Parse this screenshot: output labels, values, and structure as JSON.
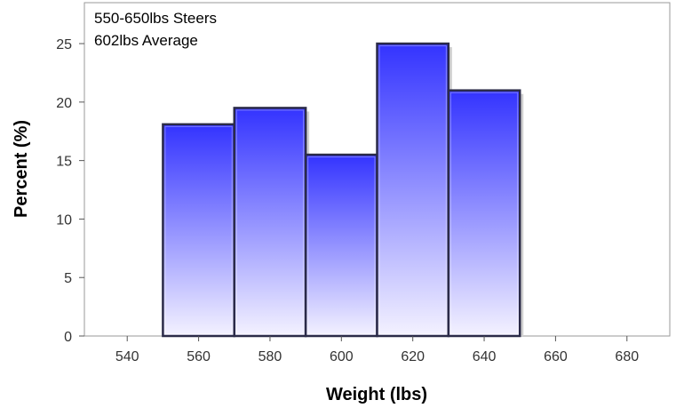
{
  "chart_data": {
    "type": "bar",
    "subtype": "histogram",
    "annotations": [
      "550-650lbs Steers",
      "602lbs Average"
    ],
    "xlabel": "Weight (lbs)",
    "ylabel": "Percent (%)",
    "xlim": [
      528,
      692
    ],
    "ylim": [
      0,
      28.5
    ],
    "xticks": [
      "540",
      "560",
      "580",
      "600",
      "620",
      "640",
      "660",
      "680"
    ],
    "yticks": [
      "0",
      "5",
      "10",
      "15",
      "20",
      "25"
    ],
    "bins": [
      {
        "x0": 550,
        "x1": 570,
        "value": 18.1
      },
      {
        "x0": 570,
        "x1": 590,
        "value": 19.5
      },
      {
        "x0": 590,
        "x1": 610,
        "value": 15.5
      },
      {
        "x0": 610,
        "x1": 630,
        "value": 25.0
      },
      {
        "x0": 630,
        "x1": 650,
        "value": 21.0
      }
    ],
    "bar_color_top": "#3333ff",
    "bar_color_bottom": "#f4f2ff",
    "bar_outline": "#2b2b48",
    "grid": false,
    "legend": "none"
  }
}
